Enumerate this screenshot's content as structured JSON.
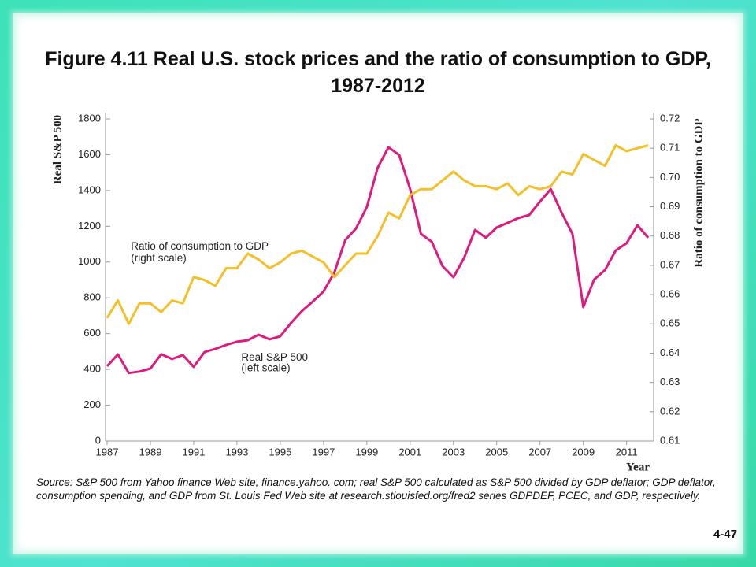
{
  "chart_data": {
    "type": "line",
    "title": "Figure 4.11  Real U.S. stock prices and the ratio of consumption to GDP, 1987-2012",
    "xlabel": "Year",
    "ylabel": "Real S&P 500",
    "y2label": "Ratio of consumption to GDP",
    "annotations": [
      {
        "text": "Ratio of consumption to GDP",
        "x": 1988.1,
        "y": 1085
      },
      {
        "text": "(right scale)",
        "x": 1988.1,
        "y": 1020
      },
      {
        "text": "Real S&P 500",
        "x": 1993.2,
        "y": 465
      },
      {
        "text": "(left scale)",
        "x": 1993.2,
        "y": 405
      }
    ],
    "source": "Source: S&P 500 from Yahoo finance Web site, finance.yahoo. com; real S&P 500 calculated as S&P 500 divided by GDP deflator; GDP deflator, consumption spending, and GDP from St. Louis Fed Web site at research.stlouisfed.org/fred2 series GDPDEF, PCEC, and GDP, respectively.",
    "page_number": "4-47",
    "x": [
      1987,
      1987.5,
      1988,
      1988.5,
      1989,
      1989.5,
      1990,
      1990.5,
      1991,
      1991.5,
      1992,
      1992.5,
      1993,
      1993.5,
      1994,
      1994.5,
      1995,
      1995.5,
      1996,
      1996.5,
      1997,
      1997.5,
      1998,
      1998.5,
      1999,
      1999.5,
      2000,
      2000.5,
      2001,
      2001.5,
      2002,
      2002.5,
      2003,
      2003.5,
      2004,
      2004.5,
      2005,
      2005.5,
      2006,
      2006.5,
      2007,
      2007.5,
      2008,
      2008.5,
      2009,
      2009.5,
      2010,
      2010.5,
      2011,
      2011.5,
      2012
    ],
    "series": [
      {
        "name": "Real S&P 500",
        "color": "#e0197d",
        "axis": "y",
        "values": [
          418,
          484,
          380,
          388,
          405,
          485,
          458,
          480,
          414,
          497,
          515,
          537,
          555,
          563,
          594,
          568,
          585,
          660,
          726,
          779,
          836,
          942,
          1122,
          1188,
          1307,
          1527,
          1642,
          1598,
          1408,
          1158,
          1113,
          977,
          915,
          1025,
          1180,
          1136,
          1193,
          1219,
          1246,
          1263,
          1338,
          1408,
          1276,
          1158,
          748,
          902,
          955,
          1065,
          1105,
          1206,
          1136
        ]
      },
      {
        "name": "Ratio of consumption to GDP",
        "color": "#f5bf2a",
        "axis": "y2",
        "values": [
          0.652,
          0.658,
          0.65,
          0.657,
          0.657,
          0.654,
          0.658,
          0.657,
          0.666,
          0.665,
          0.663,
          0.669,
          0.669,
          0.674,
          0.672,
          0.669,
          0.671,
          0.674,
          0.675,
          0.673,
          0.671,
          0.666,
          0.67,
          0.674,
          0.674,
          0.68,
          0.688,
          0.686,
          0.694,
          0.696,
          0.696,
          0.699,
          0.702,
          0.699,
          0.697,
          0.697,
          0.696,
          0.698,
          0.694,
          0.697,
          0.696,
          0.697,
          0.702,
          0.701,
          0.708,
          0.706,
          0.704,
          0.711,
          0.709,
          0.71,
          0.711
        ]
      }
    ],
    "xlim": [
      1987,
      2012.25
    ],
    "xticks": [
      1987,
      1989,
      1991,
      1993,
      1995,
      1997,
      1999,
      2001,
      2003,
      2005,
      2007,
      2009,
      2011
    ],
    "ylim": [
      0,
      1800
    ],
    "yticks": [
      0,
      200,
      400,
      600,
      800,
      1000,
      1200,
      1400,
      1600,
      1800
    ],
    "y2lim": [
      0.61,
      0.72
    ],
    "y2ticks": [
      0.61,
      0.62,
      0.63,
      0.64,
      0.65,
      0.66,
      0.67,
      0.68,
      0.69,
      {
        "value": 0.7,
        "label": "0.70"
      },
      0.71,
      0.72
    ],
    "grid": false
  }
}
